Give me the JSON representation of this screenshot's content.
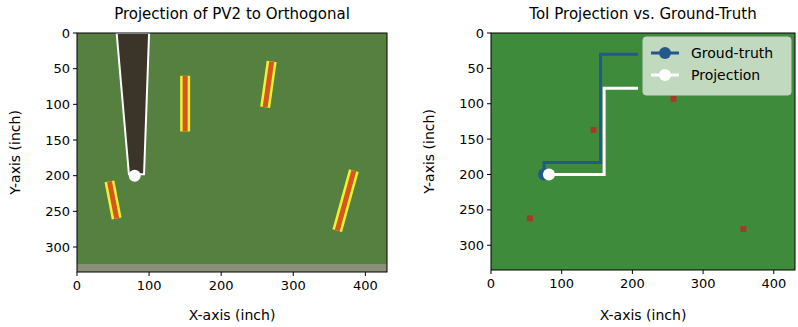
{
  "chart_data": [
    {
      "type": "image",
      "title": "Projection of PV2 to Orthogonal",
      "x_label": "X-axis (inch)",
      "y_label": "Y-axis (inch)",
      "xlim": [
        0,
        430
      ],
      "ylim": [
        335,
        0
      ],
      "xticks": [
        0,
        100,
        200,
        300,
        400
      ],
      "yticks": [
        0,
        50,
        100,
        150,
        200,
        250,
        300
      ],
      "detections": [
        {
          "x": [
            45,
            55
          ],
          "y": [
            208,
            260
          ]
        },
        {
          "x": [
            150,
            150
          ],
          "y": [
            60,
            138
          ]
        },
        {
          "x": [
            270,
            261
          ],
          "y": [
            40,
            104
          ]
        },
        {
          "x": [
            384,
            361
          ],
          "y": [
            193,
            277
          ]
        }
      ],
      "person": {
        "x": [
          55,
          100,
          93,
          72
        ],
        "y": [
          0,
          0,
          198,
          198
        ]
      },
      "projection": {
        "x": [
          80
        ],
        "y": [
          200
        ]
      }
    },
    {
      "type": "line",
      "title": "ToI Projection vs. Ground-Truth",
      "x_label": "X-axis (inch)",
      "y_label": "Y-axis (inch)",
      "xlim": [
        0,
        430
      ],
      "ylim": [
        335,
        0
      ],
      "xticks": [
        0,
        100,
        200,
        300,
        400
      ],
      "yticks": [
        0,
        50,
        100,
        150,
        200,
        250,
        300
      ],
      "legend": "upper right",
      "series": [
        {
          "name": "Groud-truth",
          "color": "#24578a",
          "marker": "o",
          "x": [
            75,
            75,
            155,
            155,
            208
          ],
          "values": [
            200,
            183,
            183,
            30,
            30
          ]
        },
        {
          "name": "Projection",
          "color": "#ffffff",
          "marker": "o",
          "x": [
            82,
            160,
            160,
            208
          ],
          "values": [
            200,
            200,
            78,
            78
          ]
        }
      ],
      "points": {
        "x": [
          145,
          258,
          357,
          55
        ],
        "y": [
          137,
          93,
          277,
          262
        ]
      }
    }
  ]
}
